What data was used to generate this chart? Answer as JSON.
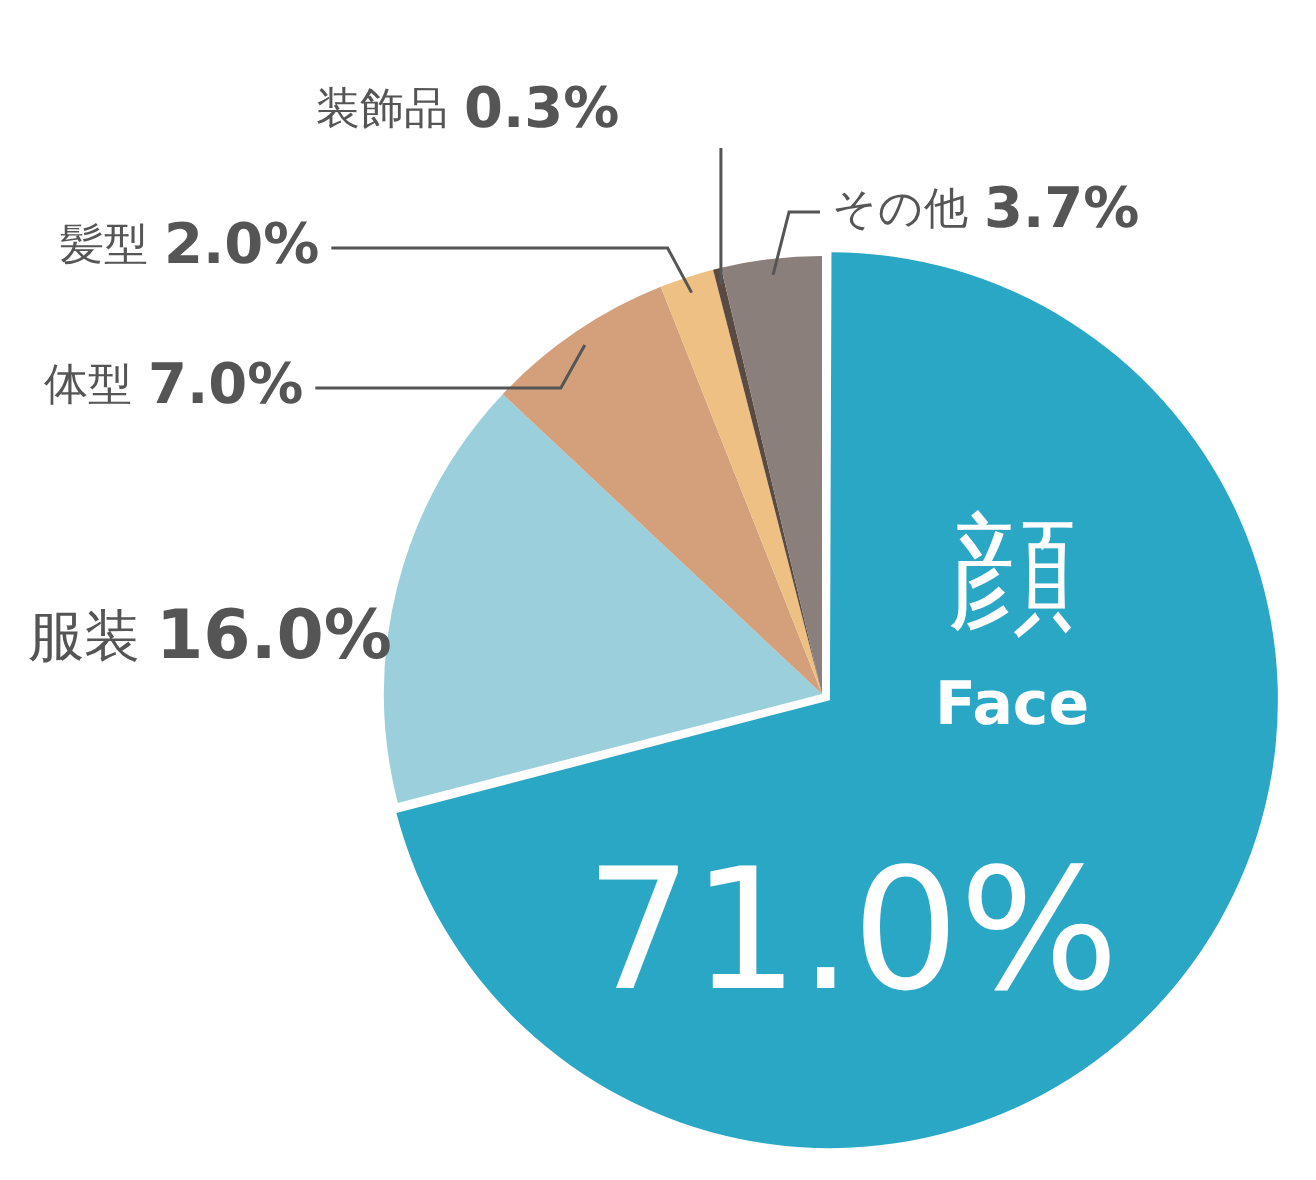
{
  "chart_data": {
    "type": "pie",
    "categories": [
      "顔\nFace",
      "服装",
      "体型",
      "髪型",
      "装飾品",
      "その他"
    ],
    "values": [
      71.0,
      16.0,
      7.0,
      2.0,
      0.3,
      3.7
    ],
    "colors": [
      "#2aa7c5",
      "#9ccfdc",
      "#d4a07c",
      "#eec083",
      "#5a4a42",
      "#8a7f7a"
    ],
    "value_labels": [
      "71.0%",
      "16.0%",
      "7.0%",
      "2.0%",
      "0.3%",
      "3.7%"
    ],
    "legend": false
  }
}
